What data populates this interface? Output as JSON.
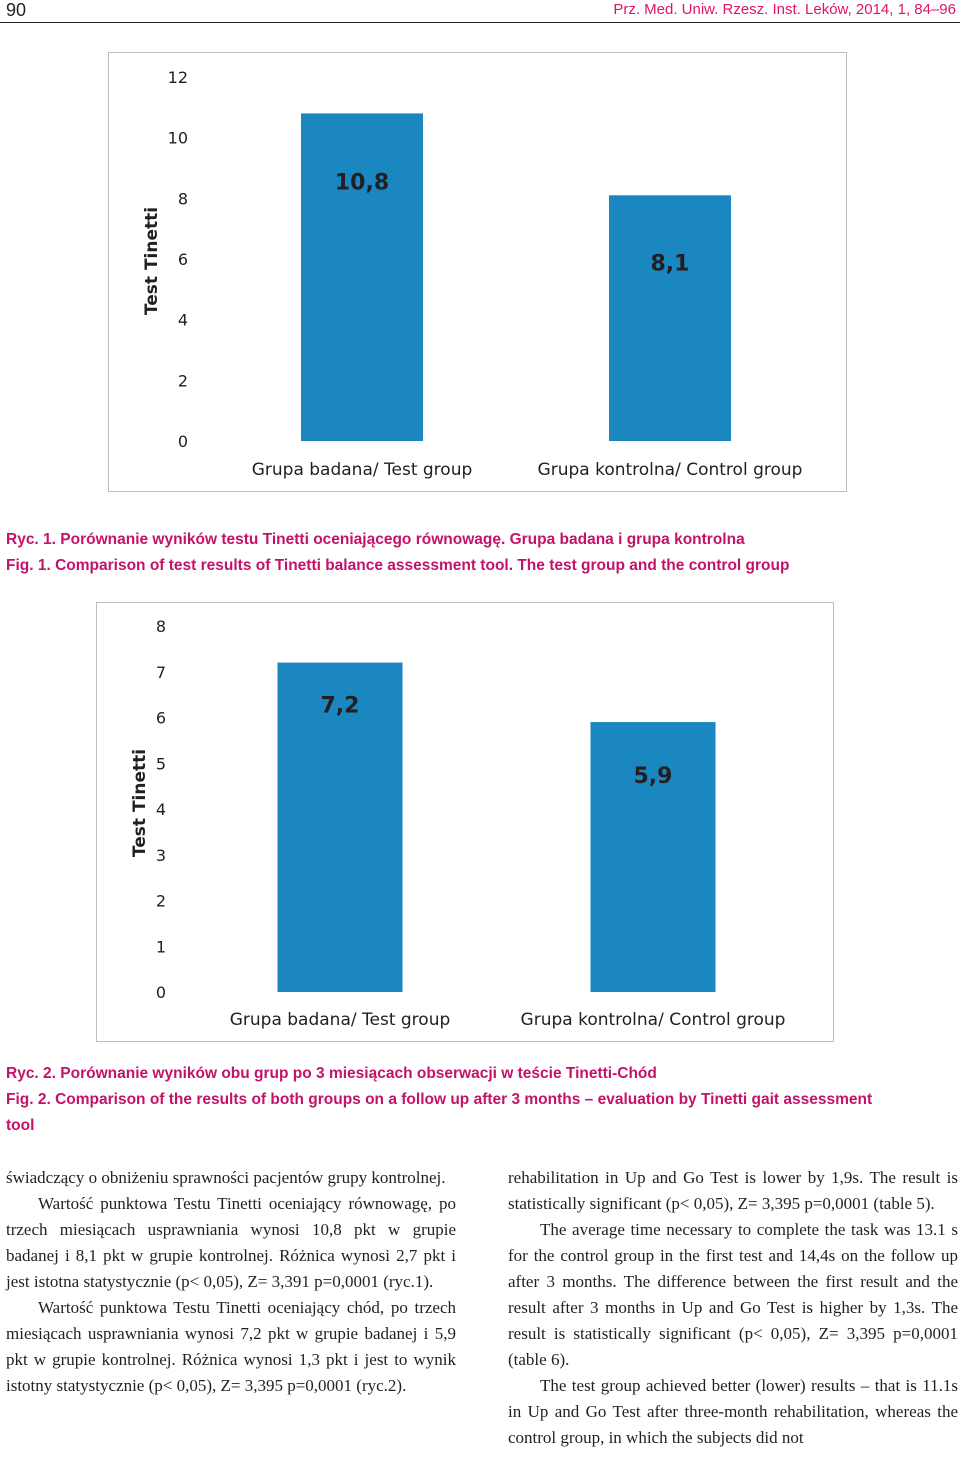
{
  "header": {
    "page_number": "90",
    "running_head": "Prz. Med. Uniw. Rzesz. Inst. Leków, 2014, 1, 84–96"
  },
  "figures": [
    {
      "caption_pl": "Ryc. 1. Porównanie wyników testu Tinetti oceniającego równowagę. Grupa badana i grupa kontrolna",
      "caption_en": "Fig. 1. Comparison of test results of Tinetti balance assessment tool. The test group and the control group"
    },
    {
      "caption_pl": "Ryc. 2. Porównanie wyników obu grup po 3 miesiącach obserwacji w teście Tinetti-Chód",
      "caption_en_line1": "Fig. 2. Comparison of the results of both groups on a follow up after 3 months – evaluation by Tinetti gait assessment",
      "caption_en_line2": "tool"
    }
  ],
  "chart_data": [
    {
      "type": "bar",
      "categories": [
        "Grupa badana/ Test group",
        "Grupa kontrolna/ Control group"
      ],
      "values": [
        10.8,
        8.1
      ],
      "data_labels": [
        "10,8",
        "8,1"
      ],
      "ylabel": "Test Tinetti",
      "ylim": [
        0,
        12
      ],
      "yticks": [
        "0",
        "2",
        "4",
        "6",
        "8",
        "10",
        "12"
      ],
      "bar_color": "#1a87c0",
      "grid": false
    },
    {
      "type": "bar",
      "categories": [
        "Grupa badana/ Test group",
        "Grupa kontrolna/ Control group"
      ],
      "values": [
        7.2,
        5.9
      ],
      "data_labels": [
        "7,2",
        "5,9"
      ],
      "ylabel": "Test Tinetti",
      "ylim": [
        0,
        8
      ],
      "yticks": [
        "0",
        "1",
        "2",
        "3",
        "4",
        "5",
        "6",
        "7",
        "8"
      ],
      "bar_color": "#1a87c0",
      "grid": false
    }
  ],
  "body": {
    "left_column": [
      "świadczący o obniżeniu sprawności pacjentów grupy kontrolnej.",
      "Wartość punktowa Testu Tinetti oceniający równowagę, po trzech miesiącach usprawniania wynosi 10,8 pkt w grupie badanej i 8,1 pkt w grupie kontrolnej. Różnica wynosi 2,7 pkt i jest istotna statystycznie (p< 0,05), Z= 3,391 p=0,0001 (ryc.1).",
      "Wartość punktowa Testu Tinetti oceniający chód, po trzech miesiącach usprawniania wynosi 7,2 pkt w grupie badanej i 5,9 pkt w grupie kontrolnej. Różnica wynosi 1,3 pkt i jest to wynik istotny statystycznie (p< 0,05), Z= 3,395 p=0,0001 (ryc.2)."
    ],
    "right_column": [
      "rehabilitation in Up and Go Test is lower by 1,9s. The result is statistically significant (p< 0,05), Z= 3,395 p=0,0001 (table 5).",
      "The average time necessary to complete the task was 13.1 s for the control group in the first test and 14,4s on the follow up after 3 months. The difference between the first result and the result after 3 months in Up and Go Test is higher by 1,3s. The result is statistically significant (p< 0,05), Z= 3,395 p=0,0001 (table 6).",
      "The test group achieved better (lower) results – that is 11.1s in Up and Go Test after three-month rehabilitation, whereas the control group, in which the subjects did not"
    ]
  }
}
